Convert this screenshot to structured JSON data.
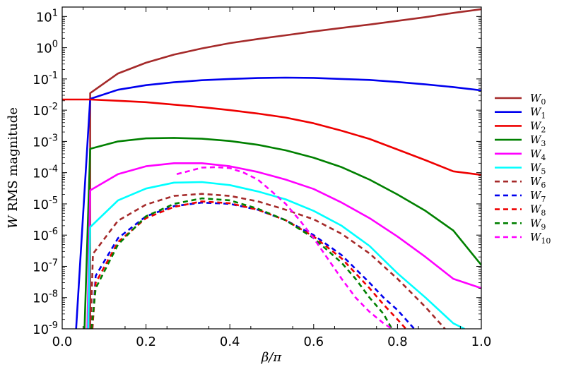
{
  "chart_data": {
    "type": "line",
    "xlabel": "β/π",
    "ylabel_italic": "W",
    "ylabel_rest": " RMS magnitude",
    "xlim": [
      0,
      1
    ],
    "ylim": [
      1e-09,
      20
    ],
    "yscale": "log",
    "x_ticks": [
      0.0,
      0.2,
      0.4,
      0.6,
      0.8,
      1.0
    ],
    "x_tick_labels": [
      "0.0",
      "0.2",
      "0.4",
      "0.6",
      "0.8",
      "1.0"
    ],
    "y_ticks": [
      -9,
      -8,
      -7,
      -6,
      -5,
      -4,
      -3,
      -2,
      -1,
      0,
      1
    ],
    "y_tick_base": "10",
    "y_tick_exponents": [
      "-9",
      "-8",
      "-7",
      "-6",
      "-5",
      "-4",
      "-3",
      "-2",
      "-1",
      "0",
      "1"
    ],
    "grid": false,
    "legend_placement": "right (outside)",
    "series": [
      {
        "name": "W",
        "sub": "0",
        "color": "#a52a2a",
        "dash": false,
        "x": [
          0.0667,
          0.0667,
          0.1333,
          0.2,
          0.2667,
          0.3333,
          0.4,
          0.4667,
          0.5333,
          0.6,
          0.6667,
          0.7333,
          0.8,
          0.8667,
          0.9333,
          1.0
        ],
        "y": [
          1e-09,
          0.035,
          0.15,
          0.33,
          0.6,
          0.95,
          1.4,
          1.9,
          2.5,
          3.3,
          4.3,
          5.5,
          7.2,
          9.5,
          13,
          17
        ]
      },
      {
        "name": "W",
        "sub": "1",
        "color": "#0000ee",
        "dash": false,
        "x": [
          0.0333,
          0.0667,
          0.1333,
          0.2,
          0.2667,
          0.3333,
          0.4,
          0.4667,
          0.5333,
          0.6,
          0.6667,
          0.7333,
          0.8,
          0.8667,
          0.9333,
          1.0
        ],
        "y": [
          1e-09,
          0.023,
          0.045,
          0.063,
          0.078,
          0.091,
          0.1,
          0.107,
          0.11,
          0.108,
          0.1,
          0.093,
          0.08,
          0.067,
          0.055,
          0.043
        ]
      },
      {
        "name": "W",
        "sub": "2",
        "color": "#ee0000",
        "dash": false,
        "x": [
          0.0,
          0.0667,
          0.1333,
          0.2,
          0.2667,
          0.3333,
          0.4,
          0.4667,
          0.5333,
          0.6,
          0.6667,
          0.7333,
          0.8,
          0.8667,
          0.9333,
          1.0
        ],
        "y": [
          0.022,
          0.022,
          0.02,
          0.018,
          0.015,
          0.0125,
          0.01,
          0.0078,
          0.0058,
          0.0038,
          0.0022,
          0.0012,
          0.00055,
          0.00025,
          0.00011,
          8.5e-05
        ]
      },
      {
        "name": "W",
        "sub": "3",
        "color": "#008000",
        "dash": false,
        "x": [
          0.0533,
          0.0667,
          0.1333,
          0.2,
          0.2667,
          0.3333,
          0.4,
          0.4667,
          0.5333,
          0.6,
          0.6667,
          0.7333,
          0.8,
          0.8667,
          0.9333,
          1.0
        ],
        "y": [
          1e-09,
          0.00058,
          0.001,
          0.00125,
          0.0013,
          0.00122,
          0.00103,
          0.00078,
          0.00052,
          0.0003,
          0.00015,
          6e-05,
          2e-05,
          6e-06,
          1.4e-06,
          1.1e-07
        ]
      },
      {
        "name": "W",
        "sub": "4",
        "color": "#ff00ff",
        "dash": false,
        "x": [
          0.06,
          0.0667,
          0.1333,
          0.2,
          0.2667,
          0.3333,
          0.4,
          0.4667,
          0.5333,
          0.6,
          0.6667,
          0.7333,
          0.8,
          0.8667,
          0.9333,
          1.0
        ],
        "y": [
          1e-09,
          2.7e-05,
          9e-05,
          0.00016,
          0.0002,
          0.0002,
          0.00016,
          0.000105,
          6e-05,
          3e-05,
          1.1e-05,
          3.5e-06,
          9e-07,
          2e-07,
          4e-08,
          2e-08
        ]
      },
      {
        "name": "W",
        "sub": "5",
        "color": "#00ffff",
        "dash": false,
        "x": [
          0.062,
          0.0667,
          0.1333,
          0.2,
          0.2667,
          0.3333,
          0.4,
          0.4667,
          0.5333,
          0.6,
          0.6667,
          0.7333,
          0.8,
          0.8667,
          0.9333,
          0.96
        ],
        "y": [
          1e-09,
          1.8e-06,
          1.3e-05,
          3.1e-05,
          4.8e-05,
          5e-05,
          4e-05,
          2.5e-05,
          1.4e-05,
          6e-06,
          2e-06,
          4.5e-07,
          6e-08,
          1e-08,
          1.5e-09,
          1e-09
        ]
      },
      {
        "name": "W",
        "sub": "6",
        "color": "#a52a2a",
        "dash": true,
        "x": [
          0.068,
          0.0733,
          0.1333,
          0.2,
          0.2667,
          0.3333,
          0.4,
          0.4667,
          0.5333,
          0.6,
          0.6667,
          0.7333,
          0.8,
          0.8667,
          0.9133
        ],
        "y": [
          1e-09,
          2.5e-07,
          2.9e-06,
          9.5e-06,
          1.8e-05,
          2.1e-05,
          1.8e-05,
          1.2e-05,
          6.5e-06,
          3.2e-06,
          1.1e-06,
          2.6e-07,
          4e-08,
          5e-09,
          1e-09
        ]
      },
      {
        "name": "W",
        "sub": "7",
        "color": "#0000ee",
        "dash": true,
        "x": [
          0.072,
          0.08,
          0.1333,
          0.2,
          0.2667,
          0.3333,
          0.4,
          0.4667,
          0.5333,
          0.6,
          0.6667,
          0.7333,
          0.7667,
          0.8,
          0.84
        ],
        "y": [
          1e-09,
          5e-08,
          8e-07,
          4e-06,
          8.5e-06,
          1.1e-05,
          1e-05,
          6.5e-06,
          3e-06,
          1e-06,
          2.3e-07,
          3e-08,
          1e-08,
          4e-09,
          1e-09
        ]
      },
      {
        "name": "W",
        "sub": "8",
        "color": "#ee0000",
        "dash": true,
        "x": [
          0.072,
          0.08,
          0.1333,
          0.2,
          0.2667,
          0.3333,
          0.4,
          0.4667,
          0.5333,
          0.6,
          0.6667,
          0.7333,
          0.7667,
          0.8,
          0.82
        ],
        "y": [
          1e-09,
          3e-08,
          6e-07,
          3.5e-06,
          8e-06,
          1.2e-05,
          1.05e-05,
          6.5e-06,
          3e-06,
          9e-07,
          1.8e-07,
          2e-08,
          6e-09,
          2e-09,
          1e-09
        ]
      },
      {
        "name": "W",
        "sub": "9",
        "color": "#008000",
        "dash": true,
        "x": [
          0.07,
          0.08,
          0.1333,
          0.2,
          0.2667,
          0.3333,
          0.4,
          0.4667,
          0.5333,
          0.6,
          0.6667,
          0.7,
          0.7333,
          0.7667,
          0.7867
        ],
        "y": [
          1e-09,
          2e-08,
          5e-07,
          4e-06,
          1e-05,
          1.5e-05,
          1.3e-05,
          7e-06,
          3e-06,
          8e-07,
          1.3e-07,
          4e-08,
          1e-08,
          3e-09,
          1e-09
        ]
      },
      {
        "name": "W",
        "sub": "10",
        "color": "#ff00ff",
        "dash": true,
        "x": [
          0.2733,
          0.3,
          0.3333,
          0.3667,
          0.4,
          0.4333,
          0.4667,
          0.5,
          0.5333,
          0.5667,
          0.6,
          0.6333,
          0.6667,
          0.7,
          0.7333,
          0.7667,
          0.7867
        ],
        "y": [
          9e-05,
          0.00011,
          0.000145,
          0.00015,
          0.00014,
          0.0001,
          6e-05,
          2.5e-05,
          1e-05,
          3e-06,
          8e-07,
          1.8e-07,
          4e-08,
          1e-08,
          3.5e-09,
          1.5e-09,
          1e-09
        ]
      }
    ]
  }
}
